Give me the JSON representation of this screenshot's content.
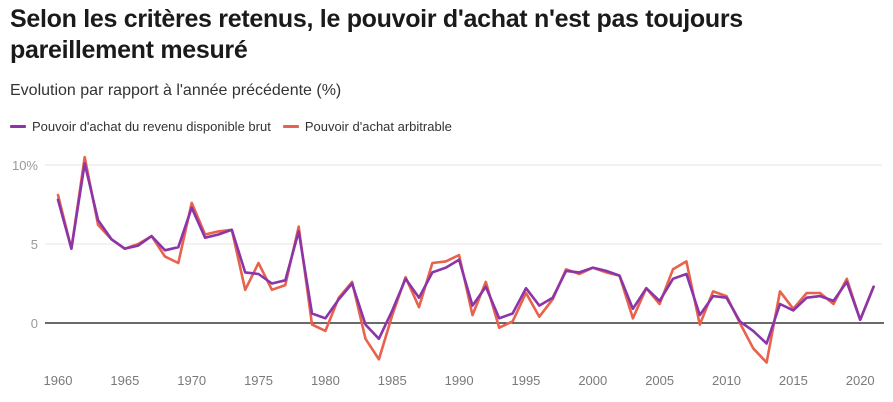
{
  "header": {
    "title": "Selon les critères retenus, le pouvoir d'achat n'est pas toujours pareillement mesuré",
    "subtitle": "Evolution par rapport à l'année précédente (%)"
  },
  "legend": [
    {
      "label": "Pouvoir d'achat du revenu disponible brut",
      "color": "#8b35a8"
    },
    {
      "label": "Pouvoir d'achat arbitrable",
      "color": "#e8624c"
    }
  ],
  "chart_data": {
    "type": "line",
    "title": "Selon les critères retenus, le pouvoir d'achat n'est pas toujours pareillement mesuré",
    "subtitle": "Evolution par rapport à l'année précédente (%)",
    "xlabel": "",
    "ylabel": "",
    "x": [
      1960,
      1961,
      1962,
      1963,
      1964,
      1965,
      1966,
      1967,
      1968,
      1969,
      1970,
      1971,
      1972,
      1973,
      1974,
      1975,
      1976,
      1977,
      1978,
      1979,
      1980,
      1981,
      1982,
      1983,
      1984,
      1985,
      1986,
      1987,
      1988,
      1989,
      1990,
      1991,
      1992,
      1993,
      1994,
      1995,
      1996,
      1997,
      1998,
      1999,
      2000,
      2001,
      2002,
      2003,
      2004,
      2005,
      2006,
      2007,
      2008,
      2009,
      2010,
      2011,
      2012,
      2013,
      2014,
      2015,
      2016,
      2017,
      2018,
      2019,
      2020,
      2021
    ],
    "series": [
      {
        "name": "Pouvoir d'achat du revenu disponible brut",
        "color": "#8b35a8",
        "values": [
          7.8,
          4.7,
          10.1,
          6.5,
          5.3,
          4.7,
          4.9,
          5.5,
          4.6,
          4.8,
          7.3,
          5.4,
          5.6,
          5.9,
          3.2,
          3.1,
          2.5,
          2.7,
          5.8,
          0.6,
          0.3,
          1.5,
          2.5,
          -0.1,
          -1.0,
          0.8,
          2.8,
          1.6,
          3.2,
          3.5,
          4.0,
          1.1,
          2.3,
          0.3,
          0.6,
          2.2,
          1.1,
          1.6,
          3.3,
          3.2,
          3.5,
          3.3,
          3.0,
          0.9,
          2.2,
          1.4,
          2.8,
          3.1,
          0.5,
          1.7,
          1.6,
          0.1,
          -0.5,
          -1.3,
          1.2,
          0.8,
          1.6,
          1.7,
          1.4,
          2.6,
          0.2,
          2.3
        ]
      },
      {
        "name": "Pouvoir d'achat arbitrable",
        "color": "#e8624c",
        "values": [
          8.1,
          4.7,
          10.5,
          6.2,
          5.3,
          4.7,
          5.0,
          5.5,
          4.2,
          3.8,
          7.6,
          5.6,
          5.8,
          5.9,
          2.1,
          3.8,
          2.1,
          2.4,
          6.1,
          -0.1,
          -0.5,
          1.6,
          2.6,
          -1.0,
          -2.3,
          0.5,
          2.9,
          1.0,
          3.8,
          3.9,
          4.3,
          0.5,
          2.6,
          -0.3,
          0.1,
          1.9,
          0.4,
          1.5,
          3.4,
          3.1,
          3.5,
          3.2,
          3.0,
          0.3,
          2.2,
          1.2,
          3.4,
          3.9,
          -0.1,
          2.0,
          1.7,
          0.0,
          -1.6,
          -2.5,
          2.0,
          0.9,
          1.9,
          1.9,
          1.2,
          2.8,
          0.2,
          2.3
        ]
      }
    ],
    "y_ticks": [
      {
        "value": 10,
        "label": "10%"
      },
      {
        "value": 5,
        "label": "5"
      },
      {
        "value": 0,
        "label": "0"
      }
    ],
    "x_ticks": [
      1960,
      1965,
      1970,
      1975,
      1980,
      1985,
      1990,
      1995,
      2000,
      2005,
      2010,
      2015,
      2020
    ],
    "ylim": [
      -3,
      10.5
    ],
    "xlim": [
      1960,
      2021
    ],
    "grid": true,
    "legend_position": "top-left"
  }
}
